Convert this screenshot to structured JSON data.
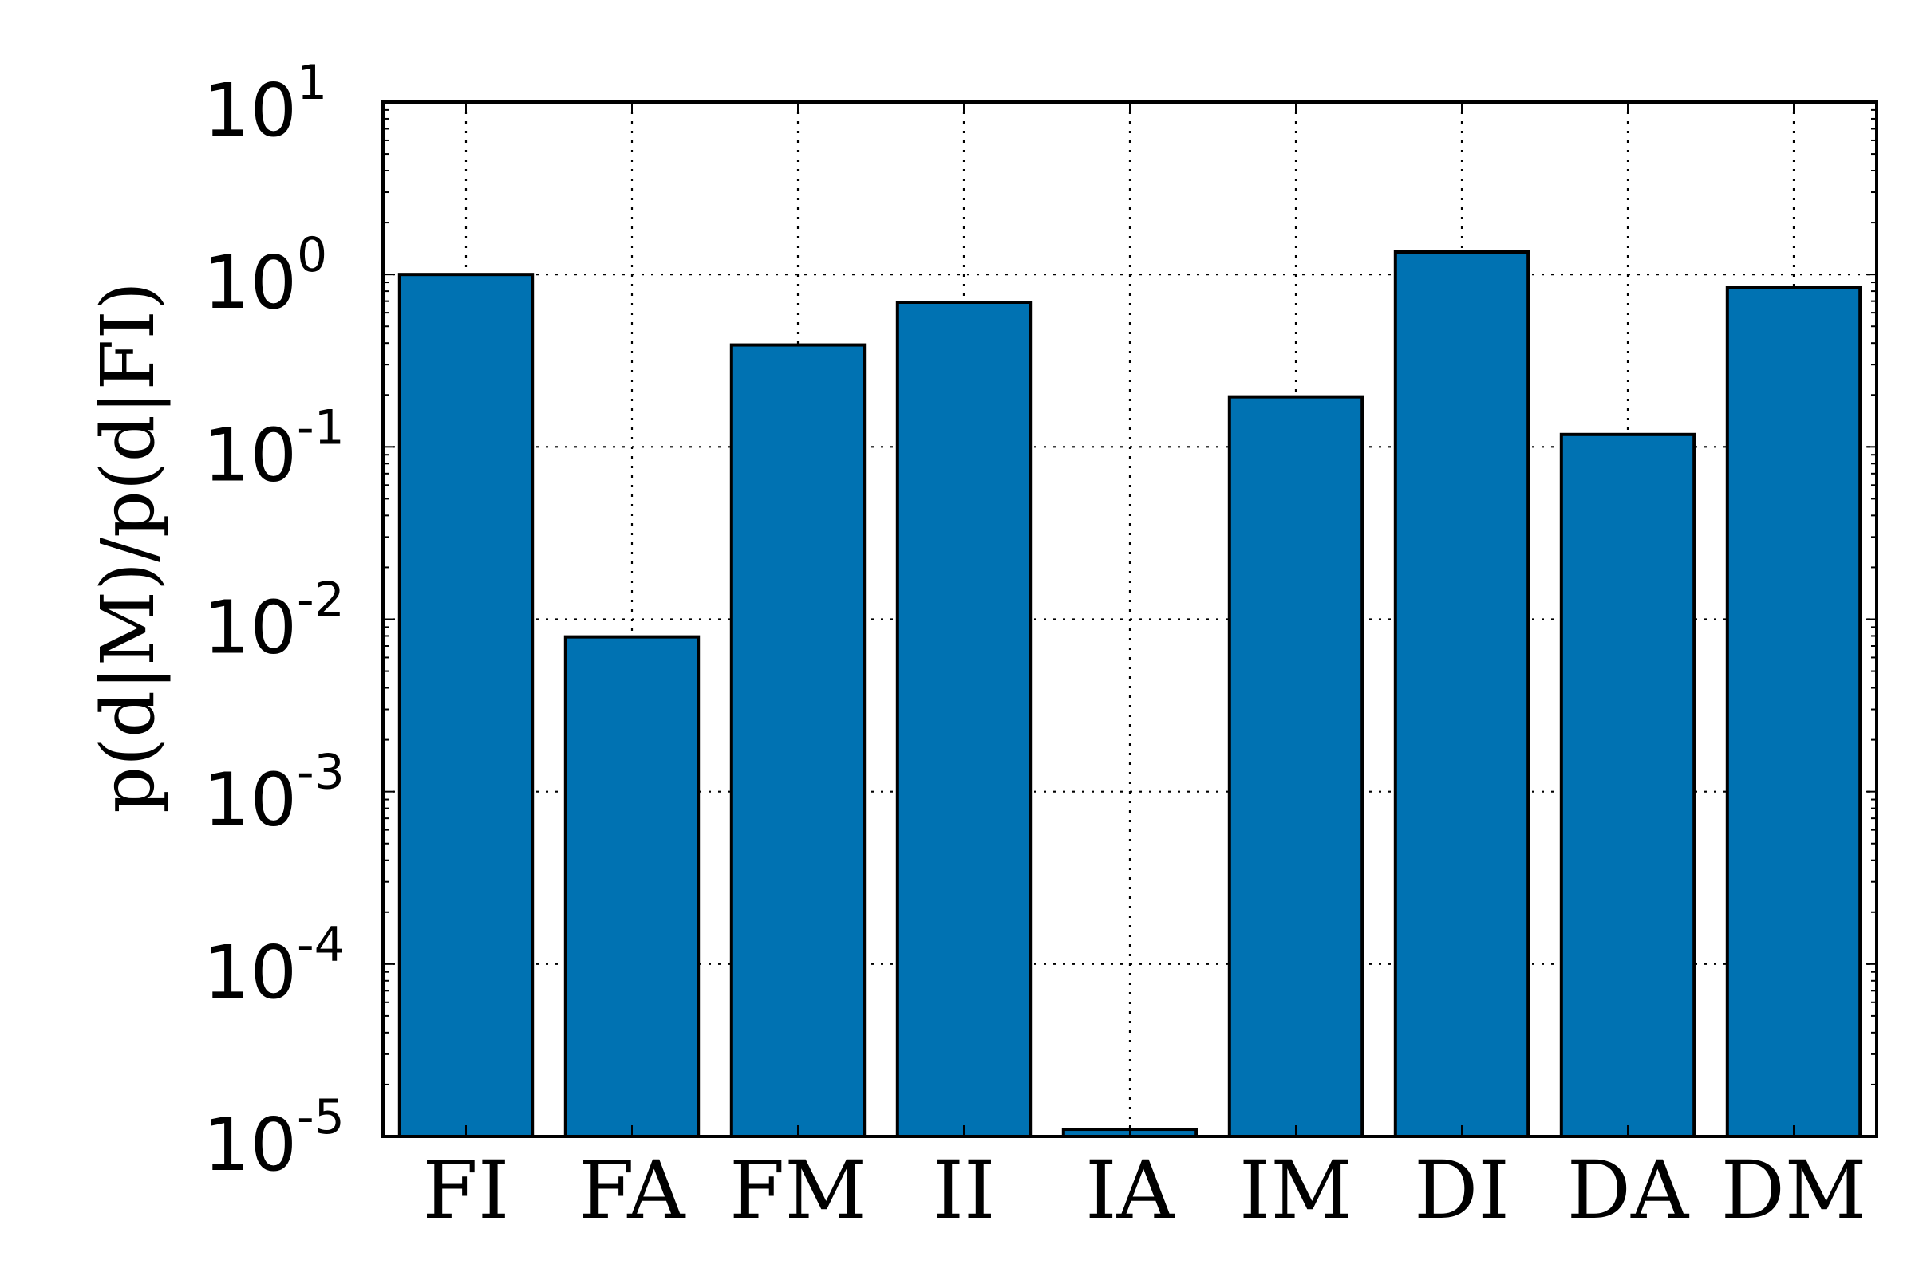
{
  "chart_data": {
    "type": "bar",
    "ylabel": "p(d|M)/p(d|FI)",
    "xlabel": "",
    "yscale": "log",
    "ylim": [
      1e-05,
      10
    ],
    "grid": true,
    "bar_color": "#0072b2",
    "categories": [
      "FI",
      "FA",
      "FM",
      "II",
      "IA",
      "IM",
      "DI",
      "DA",
      "DM"
    ],
    "values": [
      1.0,
      0.0079,
      0.39,
      0.69,
      1.1e-05,
      0.195,
      1.35,
      0.118,
      0.84
    ],
    "yticks": [
      {
        "base": "10",
        "exp": "-5"
      },
      {
        "base": "10",
        "exp": "-4"
      },
      {
        "base": "10",
        "exp": "-3"
      },
      {
        "base": "10",
        "exp": "-2"
      },
      {
        "base": "10",
        "exp": "-1"
      },
      {
        "base": "10",
        "exp": "0"
      },
      {
        "base": "10",
        "exp": "1"
      }
    ]
  }
}
